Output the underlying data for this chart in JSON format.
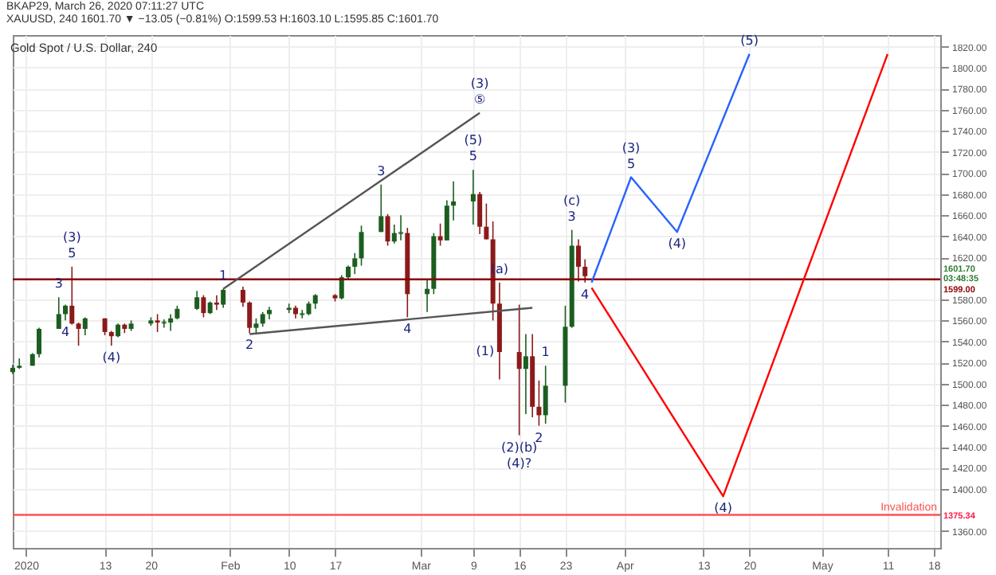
{
  "chart_data": {
    "type": "candlestick",
    "title": "Gold Spot / U.S. Dollar, 240",
    "subtitle": "BKAP29, March 26, 2020 07:11:27 UTC",
    "x": [
      "2019-12-30",
      "2019-12-31",
      "2020-01-02",
      "2020-01-03",
      "2020-01-06",
      "2020-01-07",
      "2020-01-08",
      "2020-01-09",
      "2020-01-10",
      "2020-01-13",
      "2020-01-14",
      "2020-01-15",
      "2020-01-16",
      "2020-01-17",
      "2020-01-20",
      "2020-01-21",
      "2020-01-22",
      "2020-01-23",
      "2020-01-24",
      "2020-01-27",
      "2020-01-28",
      "2020-01-29",
      "2020-01-30",
      "2020-01-31",
      "2020-02-03",
      "2020-02-04",
      "2020-02-05",
      "2020-02-06",
      "2020-02-07",
      "2020-02-10",
      "2020-02-11",
      "2020-02-12",
      "2020-02-13",
      "2020-02-14",
      "2020-02-17",
      "2020-02-18",
      "2020-02-19",
      "2020-02-20",
      "2020-02-21",
      "2020-02-24",
      "2020-02-25",
      "2020-02-26",
      "2020-02-27",
      "2020-02-28",
      "2020-03-02",
      "2020-03-03",
      "2020-03-04",
      "2020-03-05",
      "2020-03-06",
      "2020-03-09",
      "2020-03-10",
      "2020-03-11",
      "2020-03-12",
      "2020-03-13",
      "2020-03-16",
      "2020-03-17",
      "2020-03-18",
      "2020-03-19",
      "2020-03-20",
      "2020-03-23",
      "2020-03-24",
      "2020-03-25",
      "2020-03-26"
    ],
    "ohlc": [
      [
        1511,
        1518,
        1509,
        1515
      ],
      [
        1515,
        1524,
        1514,
        1517
      ],
      [
        1517,
        1529,
        1517,
        1528
      ],
      [
        1528,
        1553,
        1525,
        1552
      ],
      [
        1552,
        1582,
        1552,
        1566
      ],
      [
        1566,
        1575,
        1560,
        1574
      ],
      [
        1574,
        1611,
        1556,
        1557
      ],
      [
        1557,
        1558,
        1536,
        1552
      ],
      [
        1552,
        1563,
        1546,
        1562
      ],
      [
        1562,
        1562,
        1546,
        1549
      ],
      [
        1549,
        1550,
        1536,
        1545
      ],
      [
        1545,
        1557,
        1544,
        1556
      ],
      [
        1556,
        1557,
        1548,
        1552
      ],
      [
        1552,
        1560,
        1550,
        1557
      ],
      [
        1557,
        1563,
        1555,
        1560
      ],
      [
        1560,
        1566,
        1549,
        1558
      ],
      [
        1558,
        1561,
        1553,
        1558
      ],
      [
        1558,
        1566,
        1550,
        1562
      ],
      [
        1562,
        1574,
        1561,
        1571
      ],
      [
        1571,
        1588,
        1570,
        1582
      ],
      [
        1582,
        1584,
        1563,
        1567
      ],
      [
        1567,
        1578,
        1566,
        1577
      ],
      [
        1577,
        1584,
        1570,
        1575
      ],
      [
        1575,
        1590,
        1572,
        1589
      ],
      [
        1589,
        1592,
        1573,
        1577
      ],
      [
        1577,
        1578,
        1548,
        1553
      ],
      [
        1553,
        1562,
        1547,
        1557
      ],
      [
        1557,
        1568,
        1554,
        1566
      ],
      [
        1566,
        1573,
        1561,
        1570
      ],
      [
        1570,
        1576,
        1567,
        1572
      ],
      [
        1572,
        1574,
        1562,
        1566
      ],
      [
        1566,
        1570,
        1562,
        1566
      ],
      [
        1566,
        1578,
        1565,
        1576
      ],
      [
        1576,
        1585,
        1571,
        1584
      ],
      [
        1584,
        1585,
        1578,
        1581
      ],
      [
        1581,
        1603,
        1580,
        1601
      ],
      [
        1601,
        1612,
        1599,
        1611
      ],
      [
        1611,
        1624,
        1604,
        1619
      ],
      [
        1619,
        1650,
        1612,
        1644
      ],
      [
        1644,
        1689,
        1644,
        1659
      ],
      [
        1659,
        1661,
        1631,
        1635
      ],
      [
        1635,
        1651,
        1633,
        1643
      ],
      [
        1643,
        1660,
        1636,
        1643
      ],
      [
        1643,
        1648,
        1563,
        1585
      ],
      [
        1585,
        1599,
        1568,
        1590
      ],
      [
        1590,
        1643,
        1585,
        1640
      ],
      [
        1640,
        1652,
        1631,
        1636
      ],
      [
        1636,
        1674,
        1636,
        1669
      ],
      [
        1669,
        1692,
        1655,
        1673
      ],
      [
        1673,
        1703,
        1651,
        1680
      ],
      [
        1680,
        1682,
        1642,
        1649
      ],
      [
        1649,
        1671,
        1637,
        1637
      ],
      [
        1637,
        1654,
        1560,
        1576
      ],
      [
        1576,
        1596,
        1504,
        1530
      ],
      [
        1530,
        1575,
        1451,
        1514
      ],
      [
        1514,
        1547,
        1471,
        1526
      ],
      [
        1526,
        1547,
        1468,
        1478
      ],
      [
        1478,
        1503,
        1460,
        1470
      ],
      [
        1470,
        1517,
        1462,
        1498
      ],
      [
        1498,
        1574,
        1482,
        1554
      ],
      [
        1554,
        1646,
        1553,
        1631
      ],
      [
        1631,
        1637,
        1597,
        1611
      ],
      [
        1611,
        1618,
        1596,
        1602
      ]
    ],
    "series": [
      {
        "type": "line",
        "color": "#2962ff",
        "x": [
          "2020-03-27",
          "2020-04-02",
          "2020-04-09",
          "2020-04-20"
        ],
        "values": [
          1596,
          1696,
          1644,
          1813
        ]
      },
      {
        "type": "line",
        "color": "#ff0000",
        "x": [
          "2020-03-27",
          "2020-04-16",
          "2020-05-11"
        ],
        "values": [
          1591,
          1393,
          1813
        ]
      },
      {
        "type": "line",
        "color": "#555555",
        "x": [
          "2020-01-31",
          "2020-03-10"
        ],
        "values": [
          1590,
          1757
        ]
      },
      {
        "type": "line",
        "color": "#555555",
        "x": [
          "2020-02-04",
          "2020-03-18"
        ],
        "values": [
          1547,
          1572
        ]
      }
    ],
    "xlim": [
      "2019-12-30",
      "2020-05-19"
    ],
    "xticks": [
      {
        "value": "2020-01-01",
        "label": "2020"
      },
      {
        "value": "2020-01-13",
        "label": "13"
      },
      {
        "value": "2020-01-20",
        "label": "20"
      },
      {
        "value": "2020-02-01",
        "label": "Feb"
      },
      {
        "value": "2020-02-10",
        "label": "10"
      },
      {
        "value": "2020-02-17",
        "label": "17"
      },
      {
        "value": "2020-03-01",
        "label": "Mar"
      },
      {
        "value": "2020-03-09",
        "label": "9"
      },
      {
        "value": "2020-03-16",
        "label": "16"
      },
      {
        "value": "2020-03-23",
        "label": "23"
      },
      {
        "value": "2020-04-01",
        "label": "Apr"
      },
      {
        "value": "2020-04-13",
        "label": "13"
      },
      {
        "value": "2020-04-20",
        "label": "20"
      },
      {
        "value": "2020-05-01",
        "label": "May"
      },
      {
        "value": "2020-05-11",
        "label": "11"
      },
      {
        "value": "2020-05-18",
        "label": "18"
      }
    ],
    "ylim": [
      1344,
      1831
    ],
    "yticks": [
      {
        "value": 1360,
        "label": "1360.00"
      },
      {
        "value": 1400,
        "label": "1400.00"
      },
      {
        "value": 1420,
        "label": "1420.00"
      },
      {
        "value": 1440,
        "label": "1440.00"
      },
      {
        "value": 1460,
        "label": "1460.00"
      },
      {
        "value": 1480,
        "label": "1480.00"
      },
      {
        "value": 1500,
        "label": "1500.00"
      },
      {
        "value": 1520,
        "label": "1520.00"
      },
      {
        "value": 1540,
        "label": "1540.00"
      },
      {
        "value": 1560,
        "label": "1560.00"
      },
      {
        "value": 1580,
        "label": "1580.00"
      },
      {
        "value": 1620,
        "label": "1620.00"
      },
      {
        "value": 1640,
        "label": "1640.00"
      },
      {
        "value": 1660,
        "label": "1660.00"
      },
      {
        "value": 1680,
        "label": "1680.00"
      },
      {
        "value": 1700,
        "label": "1700.00"
      },
      {
        "value": 1720,
        "label": "1720.00"
      },
      {
        "value": 1740,
        "label": "1740.00"
      },
      {
        "value": 1760,
        "label": "1760.00"
      },
      {
        "value": 1780,
        "label": "1780.00"
      },
      {
        "value": 1800,
        "label": "1800.00"
      },
      {
        "value": 1820,
        "label": "1820.00"
      }
    ],
    "grid": true,
    "ref_lines": [
      {
        "axis": "y",
        "value": 1599,
        "label": "1599.00",
        "color": "#8b0000"
      },
      {
        "axis": "y",
        "value": 1375.34,
        "label": "Invalidation",
        "color": "#ff5252"
      }
    ],
    "annotations": [
      "XAUUSD, 240 1601.70 ▼ −13.05 (−0.81%) O:1599.53 H:1603.10 L:1595.85 C:1601.70",
      "1601.70",
      "03:48:35",
      "1375.34",
      {
        "text": "5",
        "x": "2020-01-08",
        "y": 1611
      },
      {
        "text": "(3)",
        "x": "2020-01-08",
        "y": 1611
      },
      {
        "text": "3",
        "x": "2020-01-06",
        "y": 1582
      },
      {
        "text": "4",
        "x": "2020-01-07",
        "y": 1560
      },
      {
        "text": "(4)",
        "x": "2020-01-14",
        "y": 1536
      },
      {
        "text": "1",
        "x": "2020-01-31",
        "y": 1590
      },
      {
        "text": "2",
        "x": "2020-02-04",
        "y": 1548
      },
      {
        "text": "3",
        "x": "2020-02-24",
        "y": 1689
      },
      {
        "text": "4",
        "x": "2020-02-28",
        "y": 1563
      },
      {
        "text": "5",
        "x": "2020-03-09",
        "y": 1703
      },
      {
        "text": "(5)",
        "x": "2020-03-09",
        "y": 1703
      },
      {
        "text": "⑤",
        "x": "2020-03-10",
        "y": 1757
      },
      {
        "text": "(3)",
        "x": "2020-03-10",
        "y": 1757
      },
      {
        "text": "(a)",
        "x": "2020-03-13",
        "y": 1596
      },
      {
        "text": "(1)",
        "x": "2020-03-13",
        "y": 1530
      },
      {
        "text": "1",
        "x": "2020-03-20",
        "y": 1517
      },
      {
        "text": "2",
        "x": "2020-03-19",
        "y": 1460
      },
      {
        "text": "(2)(b)",
        "x": "2020-03-16",
        "y": 1451
      },
      {
        "text": "(4)?",
        "x": "2020-03-16",
        "y": 1451
      },
      {
        "text": "3",
        "x": "2020-03-24",
        "y": 1646
      },
      {
        "text": "(c)",
        "x": "2020-03-24",
        "y": 1646
      },
      {
        "text": "4",
        "x": "2020-03-26",
        "y": 1596
      },
      {
        "text": "5",
        "x": "2020-04-02",
        "y": 1696
      },
      {
        "text": "(3)",
        "x": "2020-04-02",
        "y": 1696
      },
      {
        "text": "(4)",
        "x": "2020-04-09",
        "y": 1644
      },
      {
        "text": "(5)",
        "x": "2020-04-20",
        "y": 1813
      },
      {
        "text": "(4)",
        "x": "2020-04-16",
        "y": 1393
      }
    ]
  }
}
